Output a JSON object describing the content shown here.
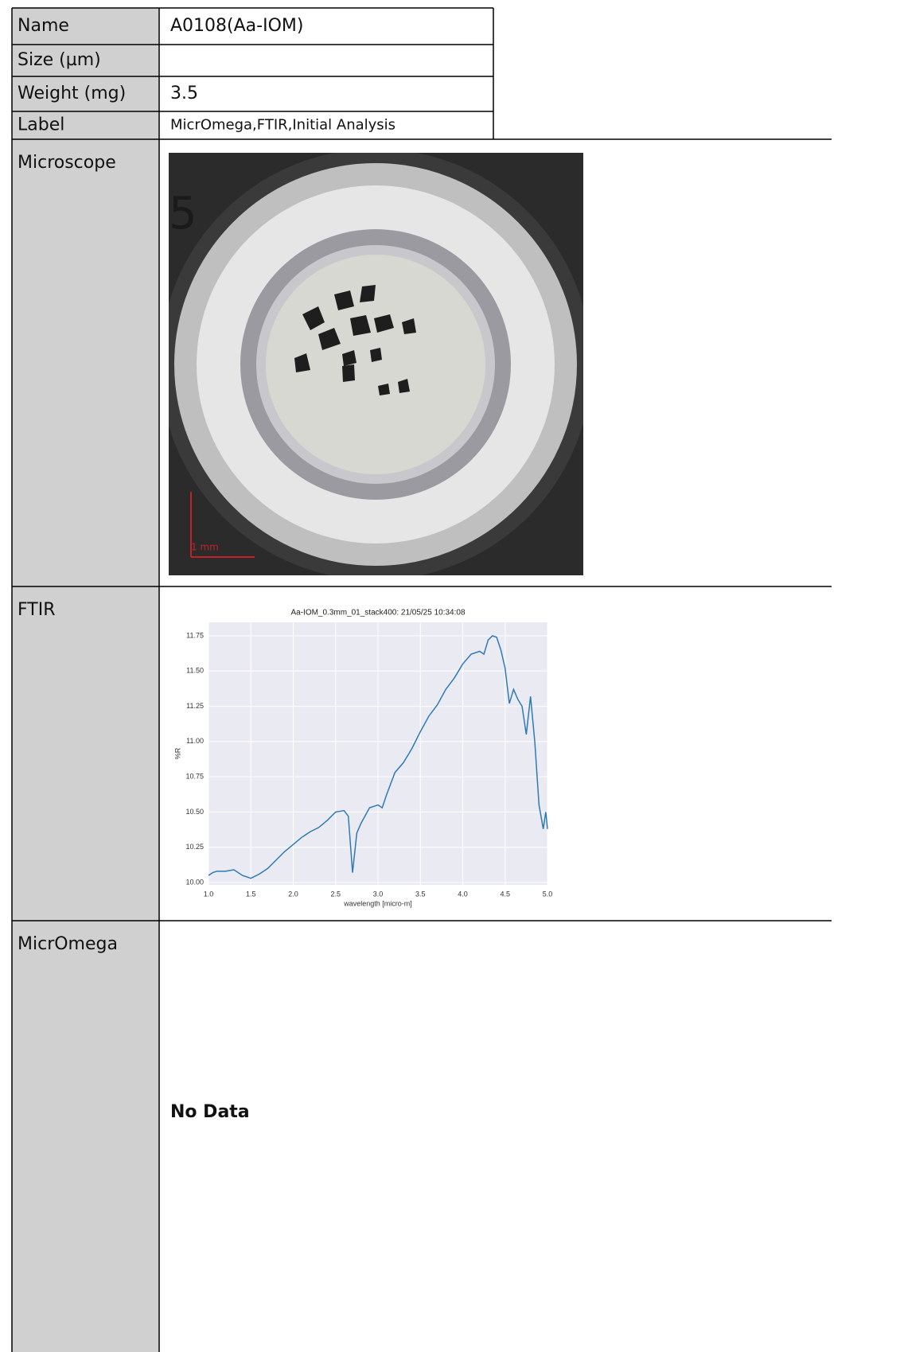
{
  "table": {
    "rows": [
      {
        "label": "Name",
        "value": "A0108(Aa-IOM)"
      },
      {
        "label": "Size (µm)"
      },
      {
        "label": "Weight (mg)",
        "value": "3.5"
      },
      {
        "label": "Label",
        "value": "MicrOmega,FTIR,Initial Analysis"
      },
      {
        "label": "Microscope",
        "photo_label": "5",
        "scale_bar": "1 mm"
      },
      {
        "label": "FTIR"
      },
      {
        "label": "MicrOmega",
        "value": "No Data"
      }
    ]
  },
  "chart_data": {
    "type": "line",
    "title": "Aa-IOM_0.3mm_01_stack400:  21/05/25 10:34:08",
    "xlabel": "wavelength [micro-m]",
    "ylabel": "%R",
    "x": [
      1.0,
      1.05,
      1.1,
      1.2,
      1.3,
      1.4,
      1.5,
      1.6,
      1.7,
      1.8,
      1.9,
      2.0,
      2.1,
      2.2,
      2.3,
      2.4,
      2.5,
      2.6,
      2.65,
      2.7,
      2.75,
      2.8,
      2.9,
      3.0,
      3.05,
      3.1,
      3.2,
      3.3,
      3.4,
      3.5,
      3.6,
      3.7,
      3.8,
      3.9,
      4.0,
      4.1,
      4.2,
      4.25,
      4.3,
      4.35,
      4.4,
      4.45,
      4.5,
      4.55,
      4.6,
      4.65,
      4.7,
      4.75,
      4.8,
      4.85,
      4.9,
      4.95,
      4.98,
      5.0
    ],
    "values": [
      10.05,
      10.07,
      10.08,
      10.08,
      10.09,
      10.05,
      10.03,
      10.06,
      10.1,
      10.16,
      10.22,
      10.27,
      10.32,
      10.36,
      10.39,
      10.44,
      10.5,
      10.51,
      10.47,
      10.07,
      10.35,
      10.42,
      10.53,
      10.55,
      10.53,
      10.62,
      10.78,
      10.85,
      10.95,
      11.07,
      11.18,
      11.26,
      11.37,
      11.45,
      11.55,
      11.62,
      11.64,
      11.62,
      11.72,
      11.75,
      11.74,
      11.65,
      11.52,
      11.27,
      11.37,
      11.3,
      11.25,
      11.05,
      11.32,
      11.0,
      10.55,
      10.38,
      10.5,
      10.38
    ],
    "color": "#2f7ab4",
    "xlim": [
      1.0,
      5.0
    ],
    "ylim": [
      9.983,
      11.846
    ],
    "xticks": [
      {
        "value": 1.0,
        "label": "1.0"
      },
      {
        "value": 1.5,
        "label": "1.5"
      },
      {
        "value": 2.0,
        "label": "2.0"
      },
      {
        "value": 2.5,
        "label": "2.5"
      },
      {
        "value": 3.0,
        "label": "3.0"
      },
      {
        "value": 3.5,
        "label": "3.5"
      },
      {
        "value": 4.0,
        "label": "4.0"
      },
      {
        "value": 4.5,
        "label": "4.5"
      },
      {
        "value": 5.0,
        "label": "5.0"
      }
    ],
    "yticks": [
      {
        "value": 10.0,
        "label": "10.00"
      },
      {
        "value": 10.25,
        "label": "10.25"
      },
      {
        "value": 10.5,
        "label": "10.50"
      },
      {
        "value": 10.75,
        "label": "10.75"
      },
      {
        "value": 11.0,
        "label": "11.00"
      },
      {
        "value": 11.25,
        "label": "11.25"
      },
      {
        "value": 11.5,
        "label": "11.50"
      },
      {
        "value": 11.75,
        "label": "11.75"
      }
    ],
    "grid": true
  }
}
